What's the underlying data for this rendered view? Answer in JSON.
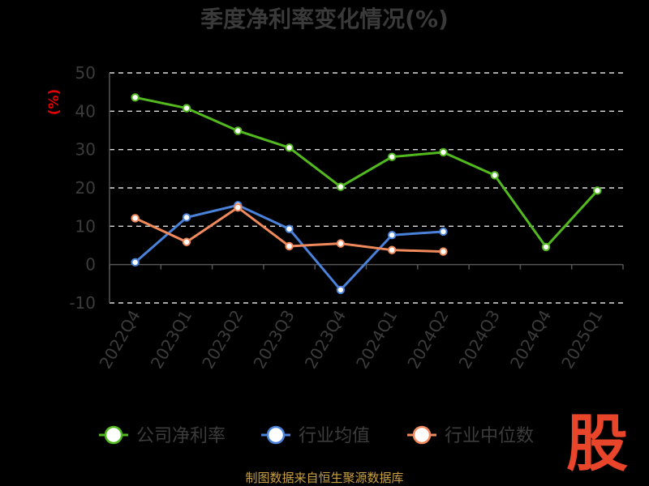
{
  "chart_data": {
    "type": "line",
    "title": "季度净利率变化情况(%)",
    "ylabel": "(%)",
    "ylim": [
      -10,
      50
    ],
    "yticks": [
      "50",
      "40",
      "30",
      "20",
      "10",
      "0",
      "-10"
    ],
    "ytick_values": [
      50,
      40,
      30,
      20,
      10,
      0,
      -10
    ],
    "categories": [
      "2022Q4",
      "2023Q1",
      "2023Q2",
      "2023Q3",
      "2023Q4",
      "2024Q1",
      "2024Q2",
      "2024Q3",
      "2024Q4",
      "2025Q1"
    ],
    "grid": true,
    "legend_position": "bottom",
    "series": [
      {
        "name": "公司净利率",
        "color": "#52b91e",
        "values": [
          43.6,
          40.8,
          34.9,
          30.5,
          20.3,
          28.1,
          29.3,
          23.3,
          4.6,
          19.3
        ]
      },
      {
        "name": "行业均值",
        "color": "#4a82d9",
        "values": [
          0.6,
          12.3,
          15.5,
          9.3,
          -6.6,
          7.7,
          8.6,
          null,
          null,
          null
        ]
      },
      {
        "name": "行业中位数",
        "color": "#f08a5d",
        "values": [
          12.1,
          5.9,
          14.9,
          4.8,
          5.5,
          3.8,
          3.4,
          null,
          null,
          null
        ]
      }
    ]
  },
  "watermark": {
    "logo_text": "股",
    "logo_color": "#e8452b"
  },
  "source_text": "制图数据来自恒生聚源数据库"
}
